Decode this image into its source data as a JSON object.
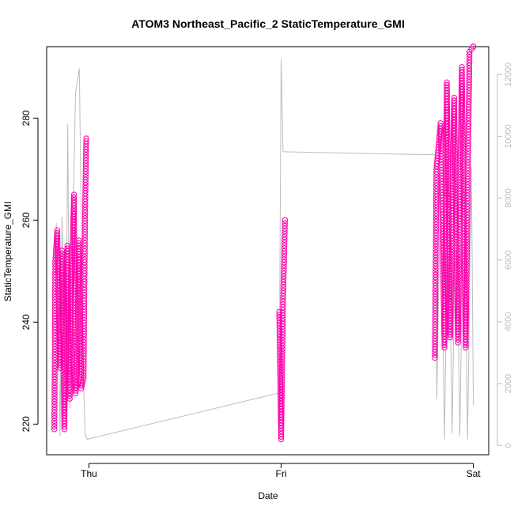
{
  "chart_data": {
    "type": "scatter",
    "title": "ATOM3 Northeast_Pacific_2 StaticTemperature_GMI",
    "xlabel": "Date",
    "ylabel": "StaticTemperature_GMI",
    "x_tick_labels": [
      "Thu",
      "Fri",
      "Sat"
    ],
    "xlim": [
      -0.22,
      2.08
    ],
    "ylim": [
      214,
      294
    ],
    "y_ticks": [
      220,
      240,
      260,
      280
    ],
    "y2lim": [
      -300,
      12900
    ],
    "y2_ticks": [
      0,
      2000,
      4000,
      6000,
      8000,
      10000,
      12000
    ],
    "grid": false,
    "legend": "none",
    "colors": {
      "points": "#ff00aa",
      "secondary_line": "#bdbdbd",
      "axes": "#000000",
      "right_axis": "#bdbdbd"
    },
    "series": [
      {
        "kind": "points",
        "axis": "left",
        "x": [
          -0.18,
          -0.175,
          -0.165,
          -0.15,
          -0.14,
          -0.128,
          -0.112,
          -0.1,
          -0.092,
          -0.078,
          -0.07,
          -0.062,
          -0.052,
          -0.04,
          -0.028,
          -0.02,
          -0.014,
          0.99,
          1.0,
          1.01,
          1.02,
          1.8,
          1.808,
          1.83,
          1.85,
          1.862,
          1.88,
          1.9,
          1.92,
          1.94,
          1.96,
          1.98,
          2.0
        ],
        "y": [
          219,
          252,
          258,
          231,
          254,
          219,
          255,
          225,
          244,
          265,
          226,
          230,
          256,
          227,
          229,
          262,
          276,
          242,
          217,
          244,
          260,
          233,
          270,
          279,
          235,
          287,
          237,
          284,
          236,
          290,
          235,
          293,
          294
        ]
      },
      {
        "kind": "line",
        "axis": "right",
        "x": [
          -0.18,
          -0.17,
          -0.15,
          -0.14,
          -0.12,
          -0.11,
          -0.1,
          -0.09,
          -0.07,
          -0.05,
          -0.03,
          -0.02,
          -0.01,
          0.99,
          1.0,
          1.01,
          1.015,
          1.8,
          1.81,
          1.83,
          1.85,
          1.87,
          1.89,
          1.91,
          1.93,
          1.95,
          1.97,
          1.99,
          2.0
        ],
        "y": [
          500,
          7200,
          300,
          7400,
          2000,
          10400,
          1200,
          5000,
          11400,
          12200,
          2500,
          400,
          200,
          1700,
          12500,
          9500,
          9500,
          9400,
          1500,
          8800,
          200,
          9200,
          400,
          9000,
          300,
          8900,
          200,
          9000,
          1300
        ]
      }
    ]
  }
}
